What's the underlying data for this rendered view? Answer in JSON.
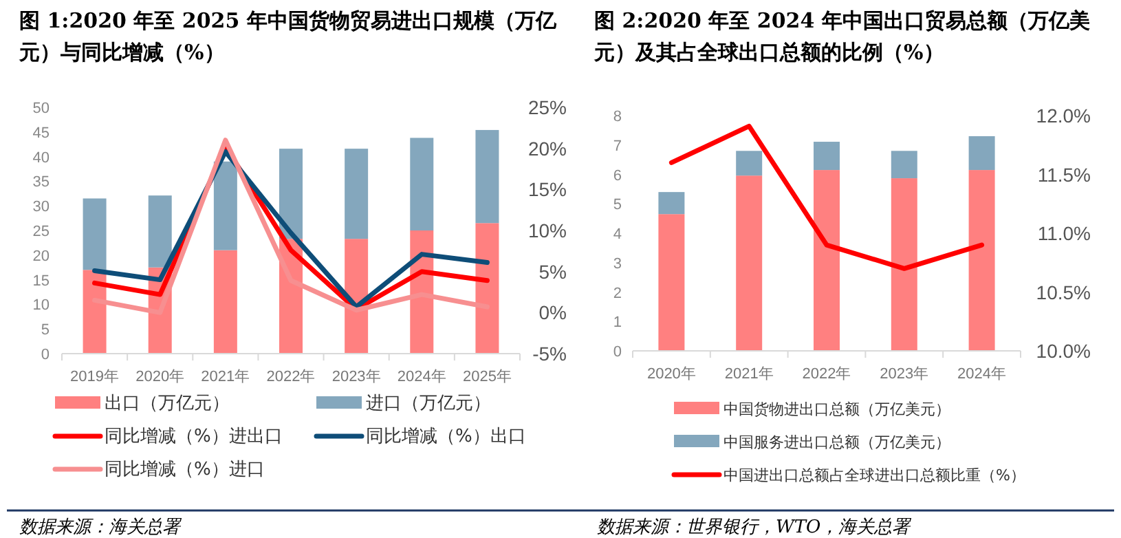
{
  "chart_data": [
    {
      "type": "bar",
      "title": "图 1:2020 年至 2025 年中国货物贸易进出口规模（万亿元）与同比增减（%）",
      "categories": [
        "2019年",
        "2020年",
        "2021年",
        "2022年",
        "2023年",
        "2024年",
        "2025年"
      ],
      "stacked": true,
      "ylim": [
        0,
        50
      ],
      "yticks": [
        0,
        5,
        10,
        15,
        20,
        25,
        30,
        35,
        40,
        45,
        50
      ],
      "y2lim": [
        -5,
        25
      ],
      "y2ticks": [
        {
          "value": -5,
          "label": "-5%"
        },
        {
          "value": 0,
          "label": "0%"
        },
        {
          "value": 5,
          "label": "5%"
        },
        {
          "value": 10,
          "label": "10%"
        },
        {
          "value": 15,
          "label": "15%"
        },
        {
          "value": 20,
          "label": "20%"
        },
        {
          "value": 25,
          "label": "25%"
        }
      ],
      "legend": "bottom",
      "annotations": [
        "数据来源：海关总署"
      ],
      "series": [
        {
          "name": "出口（万亿元）",
          "color": "#ff8080",
          "values": [
            17.0,
            17.5,
            21.0,
            23.3,
            23.3,
            25.0,
            26.5
          ]
        },
        {
          "name": "进口（万亿元）",
          "color": "#84a7bd",
          "values": [
            14.5,
            14.6,
            18.0,
            18.3,
            18.3,
            18.8,
            18.9
          ]
        },
        {
          "type": "line",
          "axis": "y2",
          "name": "同比增减（%）进出口",
          "color": "#ff0000",
          "values": [
            3.6,
            2.2,
            20.2,
            7.6,
            0.4,
            5.0,
            3.9
          ]
        },
        {
          "type": "line",
          "axis": "y2",
          "name": "同比增减（%）出口",
          "color": "#0e4d78",
          "values": [
            5.1,
            4.0,
            19.6,
            9.7,
            0.7,
            7.1,
            6.1
          ]
        },
        {
          "type": "line",
          "axis": "y2",
          "name": "同比增减（%）进口",
          "color": "#f78f90",
          "values": [
            1.5,
            0.0,
            21.0,
            3.9,
            0.3,
            2.2,
            0.7
          ]
        }
      ]
    },
    {
      "type": "bar",
      "title": "图 2:2020 年至 2024 年中国出口贸易总额（万亿美元）及其占全球出口总额的比例（%）",
      "categories": [
        "2020年",
        "2021年",
        "2022年",
        "2023年",
        "2024年"
      ],
      "stacked": true,
      "ylim": [
        0,
        8
      ],
      "yticks": [
        0,
        1,
        2,
        3,
        4,
        5,
        6,
        7,
        8
      ],
      "y2lim": [
        10,
        12
      ],
      "y2ticks": [
        {
          "value": 10,
          "label": "10.0%"
        },
        {
          "value": 10.5,
          "label": "10.5%"
        },
        {
          "value": 11,
          "label": "11.0%"
        },
        {
          "value": 11.5,
          "label": "11.5%"
        },
        {
          "value": 12,
          "label": "12.0%"
        }
      ],
      "legend": "bottom",
      "annotations": [
        "数据来源：世界银行，WTO，海关总署"
      ],
      "series": [
        {
          "name": "中国货物进出口总额（万亿美元）",
          "color": "#ff8080",
          "values": [
            4.65,
            5.96,
            6.15,
            5.87,
            6.15
          ]
        },
        {
          "name": "中国服务进出口总额（万亿美元）",
          "color": "#84a7bd",
          "values": [
            0.75,
            0.84,
            0.96,
            0.93,
            1.15
          ]
        },
        {
          "type": "line",
          "axis": "y2",
          "name": "中国进出口总额占全球进出口总额比重（%）",
          "color": "#ff0000",
          "values": [
            11.6,
            11.91,
            10.9,
            10.7,
            10.9
          ]
        }
      ]
    }
  ]
}
